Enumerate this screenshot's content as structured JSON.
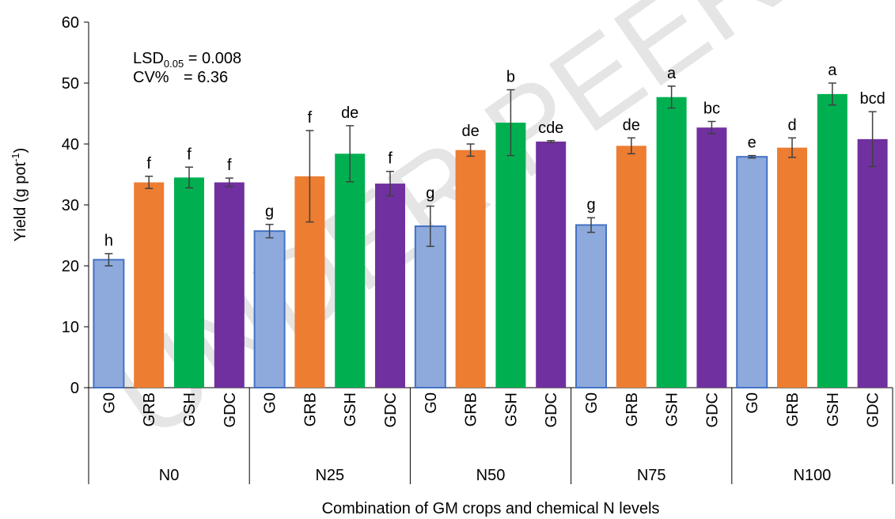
{
  "watermark": "UNDER PEER REVIEW",
  "stats": {
    "lsd_prefix": "LSD",
    "lsd_sub": "0.05",
    "lsd_value": " = 0.008",
    "cv_label": "CV%",
    "cv_value": "= 6.36"
  },
  "colors": {
    "G0": "#8eaadc",
    "GRB": "#ed7d31",
    "GSH": "#00b050",
    "GDC": "#7030a0",
    "G0_border": "#4472c4"
  },
  "chart_data": {
    "type": "bar",
    "title": "",
    "xlabel": "Combination of GM crops and chemical N levels",
    "ylabel": "Yield (g pot",
    "ylabel_sup": "-1",
    "ylabel_end": ")",
    "ylim": [
      0,
      60
    ],
    "yticks": [
      0,
      10,
      20,
      30,
      40,
      50,
      60
    ],
    "grid": false,
    "groups": [
      "N0",
      "N25",
      "N50",
      "N75",
      "N100"
    ],
    "subcategories": [
      "G0",
      "GRB",
      "GSH",
      "GDC"
    ],
    "values": [
      [
        21.0,
        33.7,
        34.5,
        33.7
      ],
      [
        25.7,
        34.7,
        38.4,
        33.5
      ],
      [
        26.5,
        39.0,
        43.5,
        40.4
      ],
      [
        26.7,
        39.7,
        47.7,
        42.7
      ],
      [
        37.9,
        39.4,
        48.2,
        40.8
      ]
    ],
    "errors": [
      [
        1.0,
        1.0,
        1.7,
        0.7
      ],
      [
        1.1,
        7.5,
        4.6,
        2.0
      ],
      [
        3.3,
        1.0,
        5.4,
        0.15
      ],
      [
        1.2,
        1.3,
        1.8,
        1.0
      ],
      [
        0.2,
        1.6,
        1.8,
        4.5
      ]
    ],
    "letters": [
      [
        "h",
        "f",
        "f",
        "f"
      ],
      [
        "g",
        "f",
        "de",
        "f"
      ],
      [
        "g",
        "de",
        "b",
        "cde"
      ],
      [
        "g",
        "de",
        "a",
        "bc"
      ],
      [
        "e",
        "d",
        "a",
        "bcd"
      ]
    ]
  }
}
